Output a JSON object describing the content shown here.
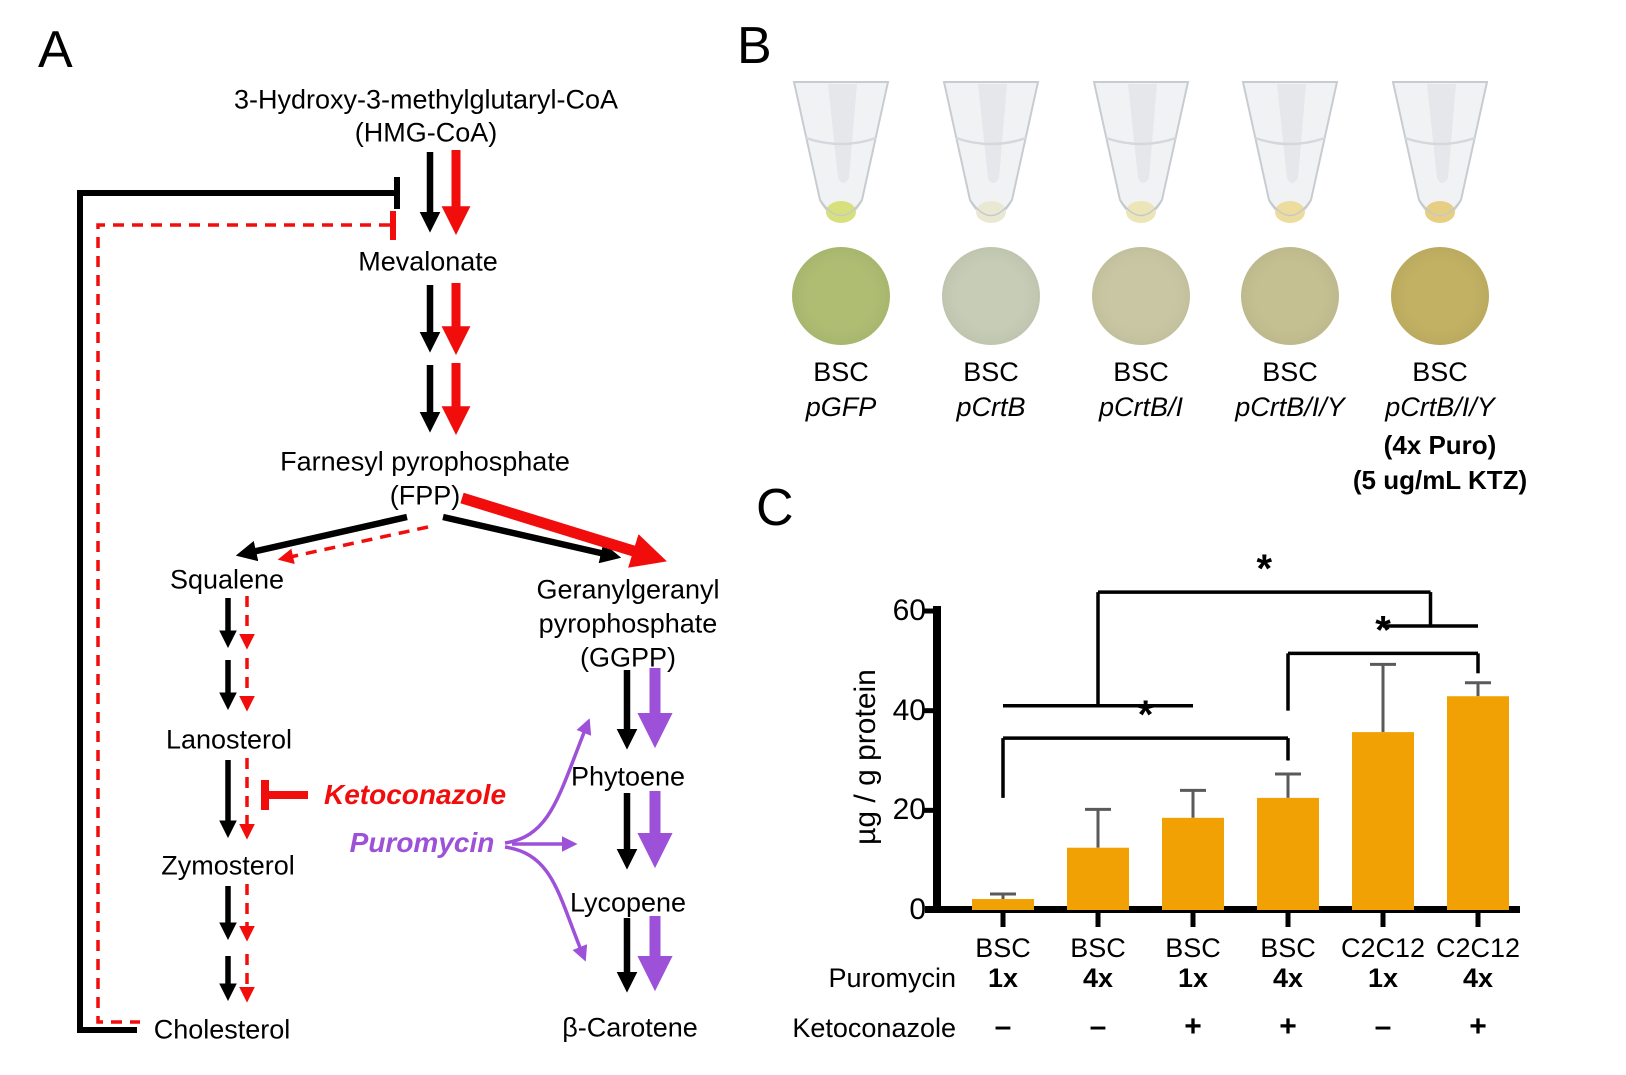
{
  "figure": {
    "panel_a_label": "A",
    "panel_b_label": "B",
    "panel_c_label": "C"
  },
  "pathway": {
    "nodes": {
      "hmg1": "3-Hydroxy-3-methylglutaryl-CoA",
      "hmg2": "(HMG-CoA)",
      "mevalonate": "Mevalonate",
      "fpp1": "Farnesyl pyrophosphate",
      "fpp2": "(FPP)",
      "squalene": "Squalene",
      "ggpp1": "Geranylgeranyl",
      "ggpp2": "pyrophosphate",
      "ggpp3": "(GGPP)",
      "lanosterol": "Lanosterol",
      "phytoene": "Phytoene",
      "zymosterol": "Zymosterol",
      "lycopene": "Lycopene",
      "cholesterol": "Cholesterol",
      "beta_carotene": "β-Carotene"
    },
    "inhibitors": {
      "ketoconazole": "Ketoconazole",
      "puromycin": "Puromycin"
    },
    "colors": {
      "black": "#000000",
      "red": "#f20d0d",
      "purple": "#9d50d8"
    }
  },
  "panel_b": {
    "columns": [
      {
        "cell": "BSC",
        "plasmid": "pGFP",
        "note1": "",
        "note2": "",
        "circle_color": "#aebd72",
        "pellet_color": "#d8e07d"
      },
      {
        "cell": "BSC",
        "plasmid": "pCrtB",
        "note1": "",
        "note2": "",
        "circle_color": "#c6ccb5",
        "pellet_color": "#e9e9d3"
      },
      {
        "cell": "BSC",
        "plasmid": "pCrtB/I",
        "note1": "",
        "note2": "",
        "circle_color": "#c9c7a3",
        "pellet_color": "#ece5b8"
      },
      {
        "cell": "BSC",
        "plasmid": "pCrtB/I/Y",
        "note1": "",
        "note2": "",
        "circle_color": "#c5c092",
        "pellet_color": "#ecdc9e"
      },
      {
        "cell": "BSC",
        "plasmid": "pCrtB/I/Y",
        "note1": "(4x Puro)",
        "note2": "(5 ug/mL KTZ)",
        "circle_color": "#c2b163",
        "pellet_color": "#e6cf82"
      }
    ]
  },
  "chart_data": {
    "type": "bar",
    "title": "",
    "xlabel": "",
    "ylabel": "µg / g protein",
    "ylim": [
      0,
      60
    ],
    "yticks": [
      0,
      20,
      40,
      60
    ],
    "grid": false,
    "legend": "none",
    "bar_color": "#f1a104",
    "error_color": "#5a5a5a",
    "categories": [
      "BSC",
      "BSC",
      "BSC",
      "BSC",
      "C2C12",
      "C2C12"
    ],
    "row_labels": {
      "puromycin": "Puromycin",
      "ketoconazole": "Ketoconazole"
    },
    "puromycin": [
      "1x",
      "4x",
      "1x",
      "4x",
      "1x",
      "4x"
    ],
    "ketoconazole": [
      "–",
      "–",
      "+",
      "+",
      "–",
      "+"
    ],
    "values": [
      2.2,
      12.5,
      18.5,
      22.5,
      35.7,
      42.9
    ],
    "error_top": [
      3.2,
      20.2,
      24,
      27.3,
      49.3,
      45.6
    ],
    "significance": [
      {
        "type": "pair",
        "bar1": 0,
        "bar2": 3,
        "y": 34.5,
        "drop1": 22.5,
        "drop2": 30,
        "label": "*"
      },
      {
        "type": "pair",
        "bar1": 3,
        "bar2": 5,
        "y": 51.5,
        "drop1": 40,
        "drop2": 47.5,
        "label": "*"
      },
      {
        "type": "group",
        "y": 63.8,
        "label": "*",
        "left_stem_bar": 1,
        "left_wing_y": 41,
        "left_wing_from": 0,
        "left_wing_to": 2,
        "right_wing_y": 57,
        "right_wing_from": 4,
        "right_wing_to": 5
      }
    ]
  }
}
